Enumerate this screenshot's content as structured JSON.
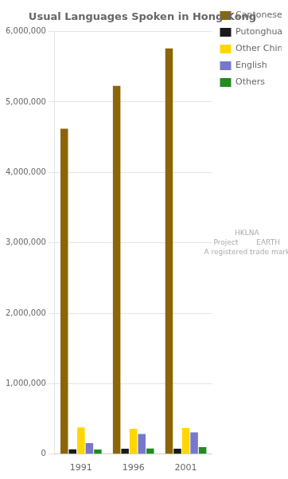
{
  "chart_data": {
    "type": "bar",
    "title": "Usual Languages Spoken in Hong Kong",
    "categories": [
      "1991",
      "1996",
      "2001"
    ],
    "series": [
      {
        "name": "Cantonese",
        "color": "#8B6508",
        "values": [
          4620000,
          5230000,
          5760000
        ]
      },
      {
        "name": "Putonghua",
        "color": "#1a1a1a",
        "values": [
          68000,
          78000,
          76000
        ]
      },
      {
        "name": "Other Chinese",
        "color": "#FFD700",
        "values": [
          380000,
          360000,
          370000
        ]
      },
      {
        "name": "English",
        "color": "#7777CC",
        "values": [
          155000,
          285000,
          310000
        ]
      },
      {
        "name": "Others",
        "color": "#228B22",
        "values": [
          65000,
          80000,
          100000
        ]
      }
    ],
    "ylim": [
      0,
      6000000
    ],
    "yticks": [
      0,
      {
        "value": 1000000,
        "label": "1,000,000"
      },
      {
        "value": 2000000,
        "label": "2,000,000"
      },
      {
        "value": 3000000,
        "label": "3,000,000"
      },
      {
        "value": 4000000,
        "label": "4,000,000"
      },
      {
        "value": 5000000,
        "label": "5,000,000"
      },
      {
        "value": 6000000,
        "label": "6,000,000"
      }
    ],
    "grid": true,
    "legend": "right",
    "annotations": [
      "HKLNA\nProject        EARTH\nA registered trade mark"
    ]
  }
}
